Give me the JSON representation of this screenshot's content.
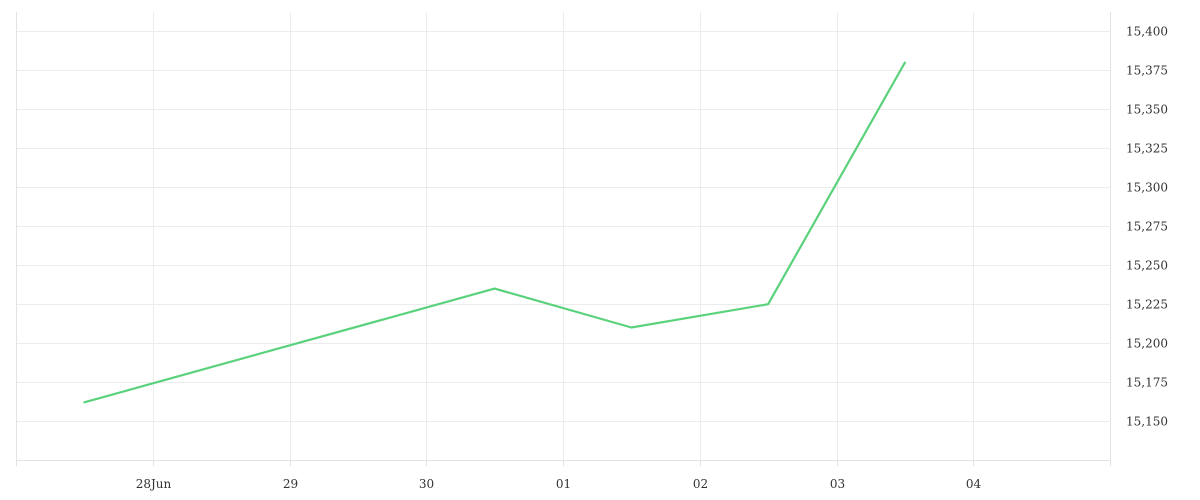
{
  "chart_data": {
    "type": "line",
    "x": [
      "2023-06-27T12:00",
      "2023-06-30T12:00",
      "2023-07-01T12:00",
      "2023-07-02T12:00",
      "2023-07-03T12:00"
    ],
    "series": [
      {
        "values": [
          15162,
          15235,
          15210,
          15225,
          15380
        ],
        "color": "#5ad27c"
      }
    ],
    "x_ticks": [
      {
        "date": "2023-06-28",
        "label": "28Jun"
      },
      {
        "date": "2023-06-29",
        "label": "29"
      },
      {
        "date": "2023-06-30",
        "label": "30"
      },
      {
        "date": "2023-07-01",
        "label": "01"
      },
      {
        "date": "2023-07-02",
        "label": "02"
      },
      {
        "date": "2023-07-03",
        "label": "03"
      },
      {
        "date": "2023-07-04",
        "label": "04"
      }
    ],
    "xlim": [
      "2023-06-27",
      "2023-07-05"
    ],
    "y_ticks": [
      15150,
      15175,
      15200,
      15225,
      15250,
      15275,
      15300,
      15325,
      15350,
      15375,
      15400
    ],
    "ylim": [
      15125,
      15412.5
    ],
    "y_axis_position": "right",
    "grid": true,
    "title": "",
    "xlabel": "",
    "ylabel": ""
  }
}
